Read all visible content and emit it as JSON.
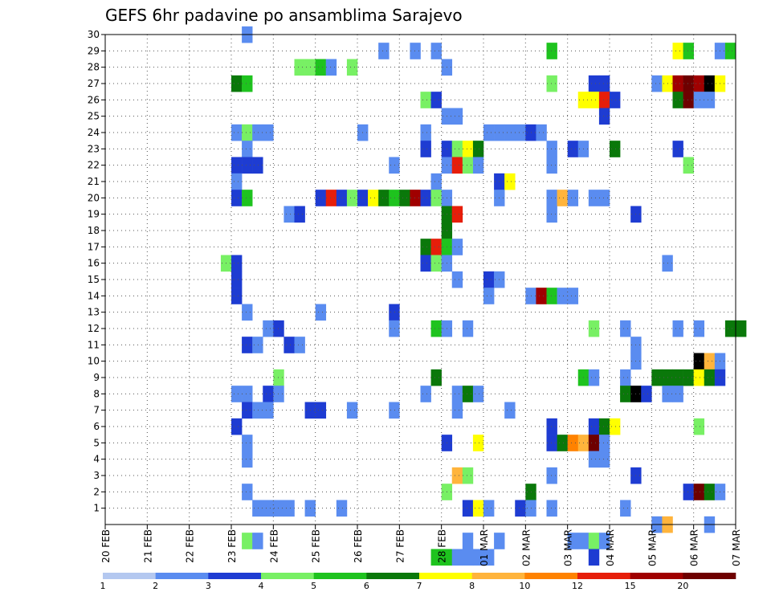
{
  "chart_data": {
    "type": "heatmap",
    "title": "GEFS 6hr padavine po ansamblima Sarajevo",
    "xlabel": "",
    "ylabel": "",
    "x_tick_labels": [
      "20 FEB",
      "21 FEB",
      "22 FEB",
      "23 FEB",
      "24 FEB",
      "25 FEB",
      "26 FEB",
      "27 FEB",
      "28 FEB",
      "01 MAR",
      "02 MAR",
      "03 MAR",
      "04 MAR",
      "05 MAR",
      "06 MAR",
      "07 MAR"
    ],
    "y_tick_labels": [
      "1",
      "2",
      "3",
      "4",
      "5",
      "6",
      "7",
      "8",
      "9",
      "10",
      "11",
      "12",
      "13",
      "14",
      "15",
      "16",
      "17",
      "18",
      "19",
      "20",
      "21",
      "22",
      "23",
      "24",
      "25",
      "26",
      "27",
      "28",
      "29",
      "30"
    ],
    "xlim": [
      0,
      60
    ],
    "ylim": [
      0,
      30
    ],
    "x_unit": "6-hour steps from 20 FEB 00z",
    "grid": true,
    "colorbar": {
      "labels": [
        "1",
        "2",
        "3",
        "4",
        "5",
        "6",
        "7",
        "8",
        "10",
        "12",
        "15",
        "20"
      ],
      "colors": [
        "#b4c8f0",
        "#5a8cf0",
        "#1e3cd2",
        "#78f064",
        "#1ec31e",
        "#0a780a",
        "#ffff00",
        "#ffb43c",
        "#ff8200",
        "#e61e0a",
        "#a00000",
        "#6e0000"
      ]
    },
    "data": [
      [
        13,
        30,
        1
      ],
      [
        26,
        29,
        1
      ],
      [
        29,
        29,
        1
      ],
      [
        31,
        29,
        1
      ],
      [
        42,
        29,
        4
      ],
      [
        54,
        29,
        6
      ],
      [
        55,
        29,
        4
      ],
      [
        58,
        29,
        1
      ],
      [
        59,
        29,
        4
      ],
      [
        18,
        28,
        3
      ],
      [
        19,
        28,
        3
      ],
      [
        20,
        28,
        4
      ],
      [
        21,
        28,
        1
      ],
      [
        23,
        28,
        3
      ],
      [
        32,
        28,
        1
      ],
      [
        12,
        27,
        5
      ],
      [
        13,
        27,
        4
      ],
      [
        42,
        27,
        3
      ],
      [
        46,
        27,
        2
      ],
      [
        47,
        27,
        2
      ],
      [
        52,
        27,
        1
      ],
      [
        53,
        27,
        6
      ],
      [
        54,
        27,
        10
      ],
      [
        55,
        27,
        11
      ],
      [
        56,
        27,
        10
      ],
      [
        57,
        27,
        12
      ],
      [
        58,
        27,
        6
      ],
      [
        30,
        26,
        3
      ],
      [
        31,
        26,
        2
      ],
      [
        45,
        26,
        6
      ],
      [
        46,
        26,
        6
      ],
      [
        47,
        26,
        9
      ],
      [
        48,
        26,
        2
      ],
      [
        54,
        26,
        5
      ],
      [
        55,
        26,
        11
      ],
      [
        56,
        26,
        1
      ],
      [
        57,
        26,
        1
      ],
      [
        32,
        25,
        1
      ],
      [
        33,
        25,
        1
      ],
      [
        47,
        25,
        2
      ],
      [
        12,
        24,
        1
      ],
      [
        13,
        24,
        3
      ],
      [
        14,
        24,
        1
      ],
      [
        15,
        24,
        1
      ],
      [
        24,
        24,
        1
      ],
      [
        30,
        24,
        1
      ],
      [
        36,
        24,
        1
      ],
      [
        37,
        24,
        1
      ],
      [
        38,
        24,
        1
      ],
      [
        39,
        24,
        1
      ],
      [
        40,
        24,
        2
      ],
      [
        41,
        24,
        1
      ],
      [
        13,
        23,
        1
      ],
      [
        30,
        23,
        2
      ],
      [
        32,
        23,
        2
      ],
      [
        33,
        23,
        3
      ],
      [
        34,
        23,
        6
      ],
      [
        35,
        23,
        5
      ],
      [
        42,
        23,
        1
      ],
      [
        44,
        23,
        2
      ],
      [
        45,
        23,
        1
      ],
      [
        48,
        23,
        5
      ],
      [
        54,
        23,
        2
      ],
      [
        12,
        22,
        2
      ],
      [
        13,
        22,
        2
      ],
      [
        14,
        22,
        2
      ],
      [
        27,
        22,
        1
      ],
      [
        32,
        22,
        1
      ],
      [
        33,
        22,
        9
      ],
      [
        34,
        22,
        3
      ],
      [
        35,
        22,
        1
      ],
      [
        42,
        22,
        1
      ],
      [
        55,
        22,
        3
      ],
      [
        12,
        21,
        1
      ],
      [
        31,
        21,
        1
      ],
      [
        37,
        21,
        2
      ],
      [
        38,
        21,
        6
      ],
      [
        12,
        20,
        2
      ],
      [
        13,
        20,
        4
      ],
      [
        20,
        20,
        2
      ],
      [
        21,
        20,
        9
      ],
      [
        22,
        20,
        2
      ],
      [
        23,
        20,
        3
      ],
      [
        24,
        20,
        2
      ],
      [
        25,
        20,
        6
      ],
      [
        26,
        20,
        5
      ],
      [
        27,
        20,
        4
      ],
      [
        28,
        20,
        5
      ],
      [
        29,
        20,
        10
      ],
      [
        30,
        20,
        2
      ],
      [
        31,
        20,
        3
      ],
      [
        32,
        20,
        1
      ],
      [
        37,
        20,
        1
      ],
      [
        42,
        20,
        1
      ],
      [
        43,
        20,
        7
      ],
      [
        44,
        20,
        1
      ],
      [
        46,
        20,
        1
      ],
      [
        47,
        20,
        1
      ],
      [
        17,
        19,
        1
      ],
      [
        18,
        19,
        2
      ],
      [
        32,
        19,
        5
      ],
      [
        33,
        19,
        9
      ],
      [
        42,
        19,
        1
      ],
      [
        50,
        19,
        2
      ],
      [
        32,
        18,
        5
      ],
      [
        30,
        17,
        5
      ],
      [
        31,
        17,
        9
      ],
      [
        32,
        17,
        4
      ],
      [
        33,
        17,
        1
      ],
      [
        11,
        16,
        3
      ],
      [
        12,
        16,
        2
      ],
      [
        30,
        16,
        2
      ],
      [
        31,
        16,
        3
      ],
      [
        32,
        16,
        1
      ],
      [
        53,
        16,
        1
      ],
      [
        12,
        15,
        2
      ],
      [
        33,
        15,
        1
      ],
      [
        36,
        15,
        2
      ],
      [
        37,
        15,
        1
      ],
      [
        12,
        14,
        2
      ],
      [
        36,
        14,
        1
      ],
      [
        40,
        14,
        1
      ],
      [
        41,
        14,
        10
      ],
      [
        42,
        14,
        4
      ],
      [
        43,
        14,
        1
      ],
      [
        44,
        14,
        1
      ],
      [
        13,
        13,
        1
      ],
      [
        20,
        13,
        1
      ],
      [
        27,
        13,
        2
      ],
      [
        15,
        12,
        1
      ],
      [
        16,
        12,
        2
      ],
      [
        27,
        12,
        1
      ],
      [
        31,
        12,
        4
      ],
      [
        32,
        12,
        1
      ],
      [
        34,
        12,
        1
      ],
      [
        46,
        12,
        3
      ],
      [
        49,
        12,
        1
      ],
      [
        54,
        12,
        1
      ],
      [
        56,
        12,
        1
      ],
      [
        59,
        12,
        5
      ],
      [
        60,
        12,
        5
      ],
      [
        13,
        11,
        2
      ],
      [
        14,
        11,
        1
      ],
      [
        17,
        11,
        2
      ],
      [
        18,
        11,
        1
      ],
      [
        50,
        11,
        1
      ],
      [
        50,
        10,
        1
      ],
      [
        56,
        10,
        12
      ],
      [
        57,
        10,
        7
      ],
      [
        58,
        10,
        1
      ],
      [
        16,
        9,
        3
      ],
      [
        31,
        9,
        5
      ],
      [
        45,
        9,
        4
      ],
      [
        46,
        9,
        1
      ],
      [
        49,
        9,
        1
      ],
      [
        52,
        9,
        5
      ],
      [
        53,
        9,
        5
      ],
      [
        54,
        9,
        5
      ],
      [
        55,
        9,
        5
      ],
      [
        56,
        9,
        6
      ],
      [
        57,
        9,
        5
      ],
      [
        58,
        9,
        2
      ],
      [
        12,
        8,
        1
      ],
      [
        13,
        8,
        1
      ],
      [
        15,
        8,
        2
      ],
      [
        16,
        8,
        1
      ],
      [
        30,
        8,
        1
      ],
      [
        33,
        8,
        1
      ],
      [
        34,
        8,
        5
      ],
      [
        35,
        8,
        1
      ],
      [
        49,
        8,
        5
      ],
      [
        50,
        8,
        12
      ],
      [
        51,
        8,
        2
      ],
      [
        53,
        8,
        1
      ],
      [
        54,
        8,
        1
      ],
      [
        13,
        7,
        2
      ],
      [
        14,
        7,
        1
      ],
      [
        15,
        7,
        1
      ],
      [
        19,
        7,
        2
      ],
      [
        20,
        7,
        2
      ],
      [
        23,
        7,
        1
      ],
      [
        27,
        7,
        1
      ],
      [
        33,
        7,
        1
      ],
      [
        38,
        7,
        1
      ],
      [
        12,
        6,
        2
      ],
      [
        42,
        6,
        2
      ],
      [
        46,
        6,
        2
      ],
      [
        47,
        6,
        5
      ],
      [
        48,
        6,
        6
      ],
      [
        56,
        6,
        3
      ],
      [
        13,
        5,
        1
      ],
      [
        32,
        5,
        2
      ],
      [
        35,
        5,
        6
      ],
      [
        42,
        5,
        2
      ],
      [
        43,
        5,
        5
      ],
      [
        44,
        5,
        8
      ],
      [
        45,
        5,
        7
      ],
      [
        46,
        5,
        11
      ],
      [
        47,
        5,
        1
      ],
      [
        13,
        4,
        1
      ],
      [
        46,
        4,
        1
      ],
      [
        47,
        4,
        1
      ],
      [
        33,
        3,
        7
      ],
      [
        34,
        3,
        3
      ],
      [
        42,
        3,
        1
      ],
      [
        50,
        3,
        2
      ],
      [
        13,
        2,
        1
      ],
      [
        32,
        2,
        3
      ],
      [
        40,
        2,
        5
      ],
      [
        55,
        2,
        2
      ],
      [
        56,
        2,
        11
      ],
      [
        57,
        2,
        5
      ],
      [
        58,
        2,
        1
      ],
      [
        14,
        1,
        1
      ],
      [
        15,
        1,
        1
      ],
      [
        16,
        1,
        1
      ],
      [
        17,
        1,
        1
      ],
      [
        19,
        1,
        1
      ],
      [
        22,
        1,
        1
      ],
      [
        34,
        1,
        2
      ],
      [
        35,
        1,
        6
      ],
      [
        36,
        1,
        1
      ],
      [
        39,
        1,
        2
      ],
      [
        40,
        1,
        1
      ],
      [
        42,
        1,
        1
      ],
      [
        49,
        1,
        1
      ],
      [
        52,
        0,
        1
      ],
      [
        53,
        0,
        7
      ],
      [
        57,
        0,
        1
      ],
      [
        13,
        -1,
        3
      ],
      [
        14,
        -1,
        1
      ],
      [
        34,
        -1,
        1
      ],
      [
        37,
        -1,
        1
      ],
      [
        44,
        -1,
        1
      ],
      [
        45,
        -1,
        1
      ],
      [
        46,
        -1,
        3
      ],
      [
        47,
        -1,
        1
      ],
      [
        31,
        -2,
        4
      ],
      [
        32,
        -2,
        4
      ],
      [
        33,
        -2,
        1
      ],
      [
        34,
        -2,
        1
      ],
      [
        35,
        -2,
        1
      ],
      [
        36,
        -2,
        1
      ],
      [
        46,
        -2,
        2
      ]
    ]
  }
}
